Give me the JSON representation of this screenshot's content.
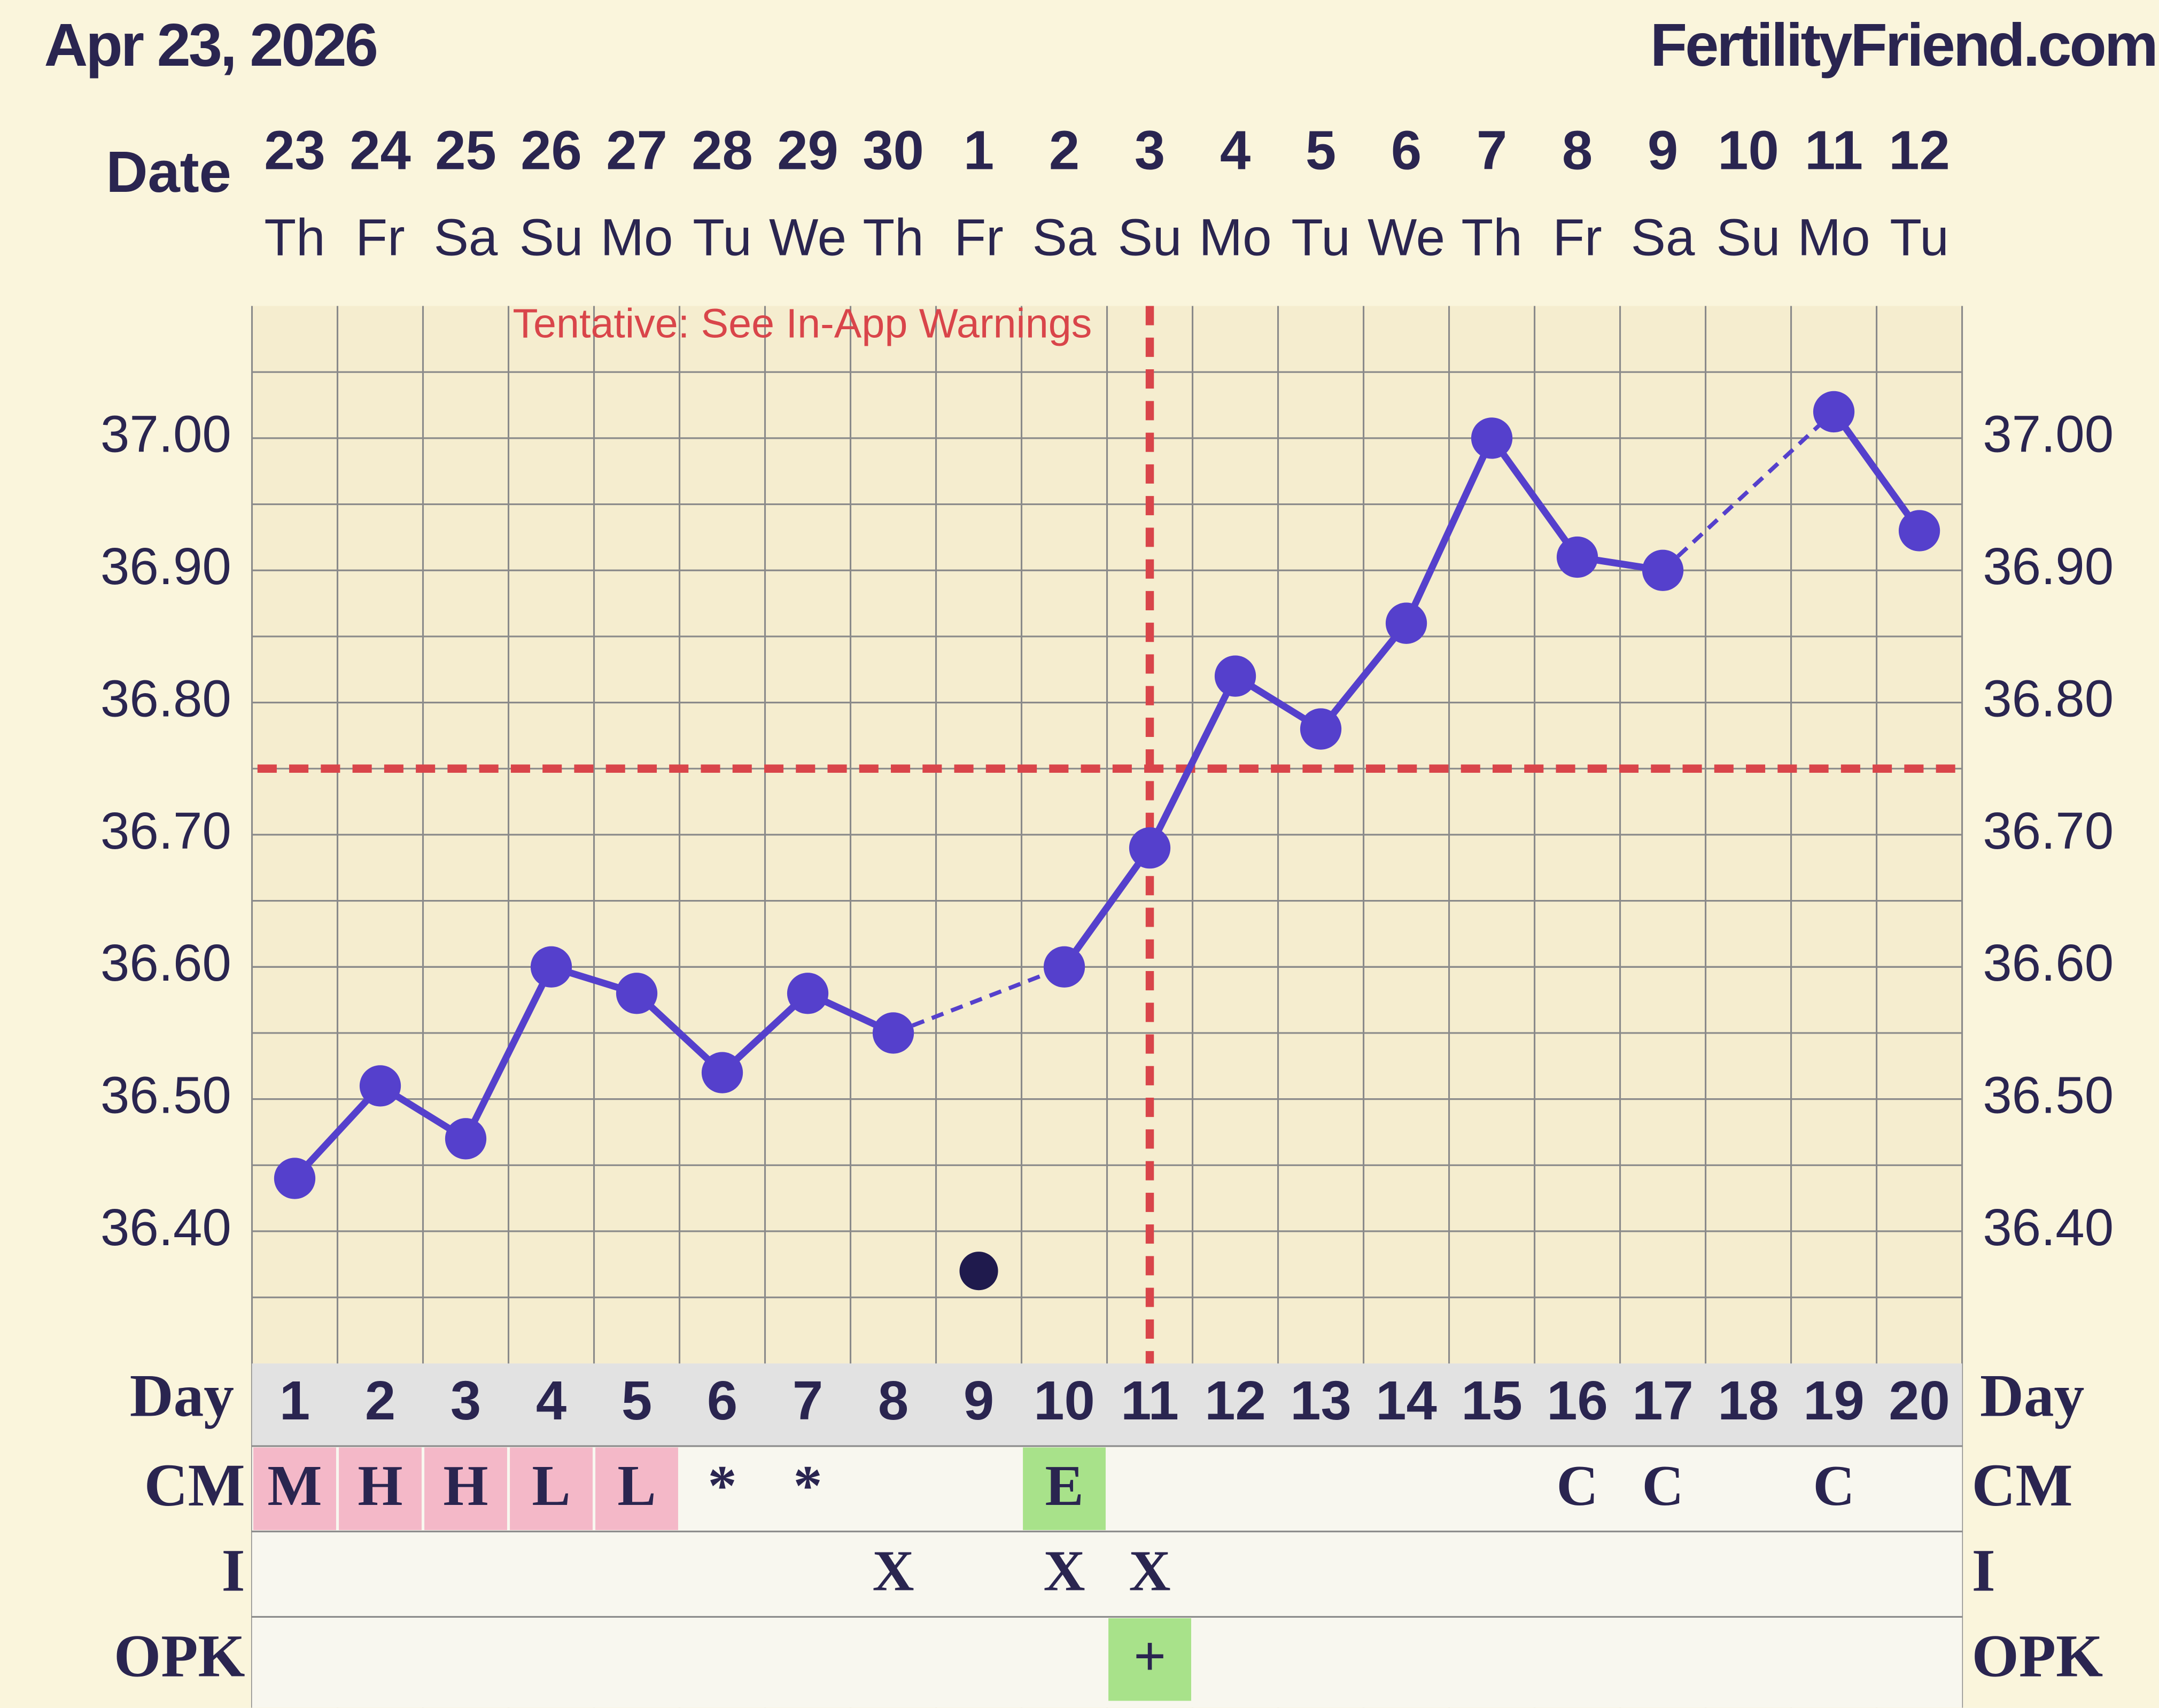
{
  "chart_data": {
    "type": "line",
    "title": "Apr 23, 2026",
    "site": "FertilityFriend.com",
    "annotation": "Tentative: See In-App Warnings",
    "date_label": "Date",
    "dates": [
      23,
      24,
      25,
      26,
      27,
      28,
      29,
      30,
      1,
      2,
      3,
      4,
      5,
      6,
      7,
      8,
      9,
      10,
      11,
      12
    ],
    "weekdays": [
      "Th",
      "Fr",
      "Sa",
      "Su",
      "Mo",
      "Tu",
      "We",
      "Th",
      "Fr",
      "Sa",
      "Su",
      "Mo",
      "Tu",
      "We",
      "Th",
      "Fr",
      "Sa",
      "Su",
      "Mo",
      "Tu"
    ],
    "day_label": "Day",
    "days": [
      1,
      2,
      3,
      4,
      5,
      6,
      7,
      8,
      9,
      10,
      11,
      12,
      13,
      14,
      15,
      16,
      17,
      18,
      19,
      20
    ],
    "values": [
      36.44,
      36.51,
      36.47,
      36.6,
      36.58,
      36.52,
      36.58,
      36.55,
      null,
      36.6,
      36.69,
      36.82,
      36.78,
      36.86,
      37.0,
      36.91,
      36.9,
      null,
      37.02,
      36.93
    ],
    "color": "#5540cc",
    "discarded_values": [
      null,
      null,
      null,
      null,
      null,
      null,
      null,
      null,
      36.37,
      null,
      null,
      null,
      null,
      null,
      null,
      null,
      null,
      null,
      null,
      null
    ],
    "discarded_color": "#1f1a4d",
    "coverline": 36.75,
    "ovulation_day": 11,
    "line_marker_color": "#d9454a",
    "ylim": [
      36.3,
      37.1
    ],
    "yticks": [
      {
        "value": 36.4,
        "label": "36.40"
      },
      {
        "value": 36.5,
        "label": "36.50"
      },
      {
        "value": 36.6,
        "label": "36.60"
      },
      {
        "value": 36.7,
        "label": "36.70"
      },
      {
        "value": 36.8,
        "label": "36.80"
      },
      {
        "value": 36.9,
        "label": "36.90"
      },
      {
        "value": 37.0,
        "label": "37.00"
      }
    ],
    "grid": true,
    "rows": [
      {
        "label": "CM",
        "values": [
          "M",
          "H",
          "H",
          "L",
          "L",
          "*",
          "*",
          null,
          null,
          "E",
          null,
          null,
          null,
          null,
          null,
          "C",
          "C",
          null,
          "C",
          null
        ],
        "colors": [
          "#f4b8c8",
          "#f4b8c8",
          "#f4b8c8",
          "#f4b8c8",
          "#f4b8c8",
          null,
          null,
          null,
          null,
          "#a8e28a",
          null,
          null,
          null,
          null,
          null,
          null,
          null,
          null,
          null,
          null
        ]
      },
      {
        "label": "I",
        "values": [
          null,
          null,
          null,
          null,
          null,
          null,
          null,
          "X",
          null,
          "X",
          "X",
          null,
          null,
          null,
          null,
          null,
          null,
          null,
          null,
          null
        ],
        "colors": [
          null,
          null,
          null,
          null,
          null,
          null,
          null,
          null,
          null,
          null,
          null,
          null,
          null,
          null,
          null,
          null,
          null,
          null,
          null,
          null
        ]
      },
      {
        "label": "OPK",
        "values": [
          null,
          null,
          null,
          null,
          null,
          null,
          null,
          null,
          null,
          null,
          "+",
          null,
          null,
          null,
          null,
          null,
          null,
          null,
          null,
          null
        ],
        "colors": [
          null,
          null,
          null,
          null,
          null,
          null,
          null,
          null,
          null,
          null,
          "#a8e28a",
          null,
          null,
          null,
          null,
          null,
          null,
          null,
          null,
          null
        ]
      }
    ]
  }
}
